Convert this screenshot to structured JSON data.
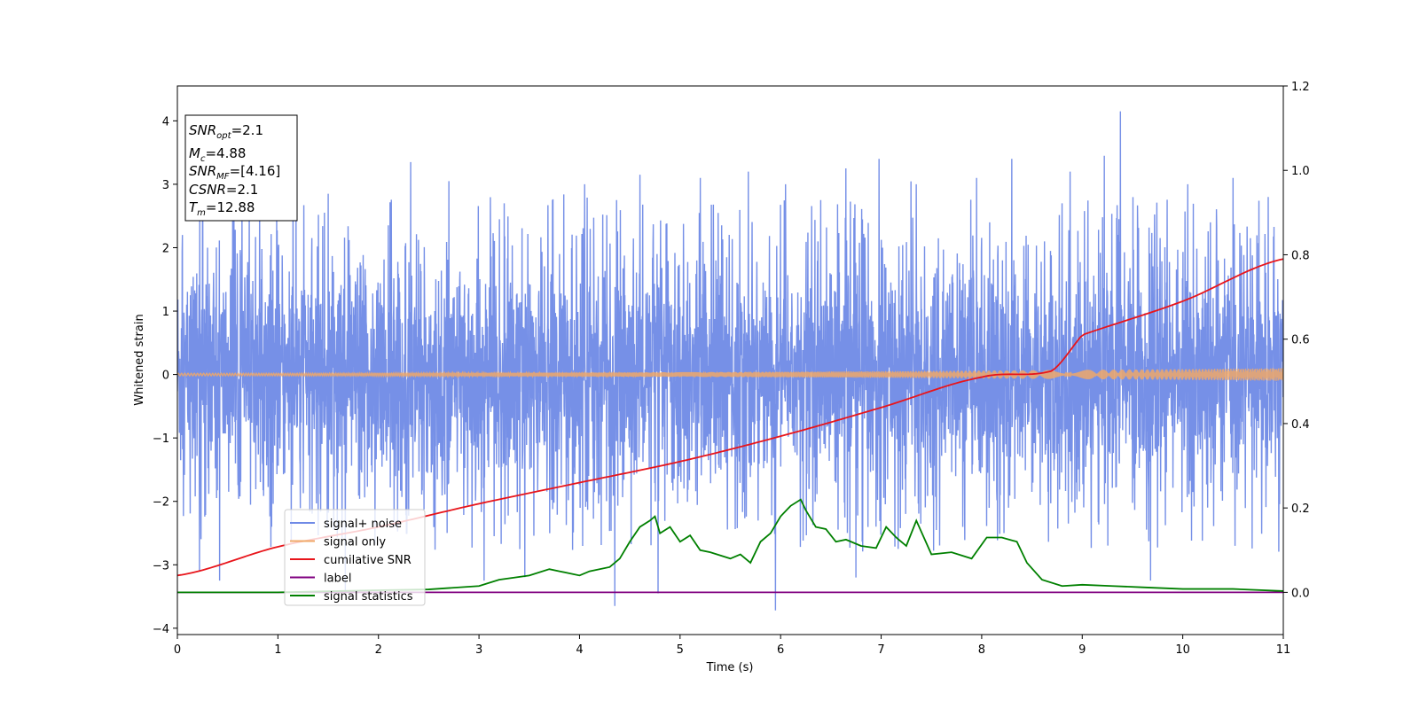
{
  "chart_data": {
    "type": "line",
    "xlabel": "Time (s)",
    "ylabel": "Whitened strain",
    "xlim": [
      0,
      11
    ],
    "ylim_left": [
      -4.1,
      4.55
    ],
    "ylim_right": [
      -0.1,
      1.2
    ],
    "x_ticks": [
      0,
      1,
      2,
      3,
      4,
      5,
      6,
      7,
      8,
      9,
      10,
      11
    ],
    "y_ticks_left": [
      -4,
      -3,
      -2,
      -1,
      0,
      1,
      2,
      3,
      4
    ],
    "y_ticks_right": [
      0.0,
      0.2,
      0.4,
      0.6,
      0.8,
      1.0,
      1.2
    ],
    "grid": false,
    "legend_placement": "lower-left",
    "series": [
      {
        "name": "signal+ noise",
        "axis": "left",
        "color": "#6f8ae6",
        "style": "dense-noise",
        "envelope_typical": [
          -1.8,
          1.8
        ],
        "spikes": [
          {
            "x": 0.05,
            "y": 2.2
          },
          {
            "x": 0.22,
            "y": -3.1
          },
          {
            "x": 0.42,
            "y": -3.25
          },
          {
            "x": 0.55,
            "y": 2.6
          },
          {
            "x": 1.15,
            "y": 3.0
          },
          {
            "x": 1.5,
            "y": 2.85
          },
          {
            "x": 2.32,
            "y": 3.35
          },
          {
            "x": 2.7,
            "y": 3.05
          },
          {
            "x": 3.05,
            "y": -3.25
          },
          {
            "x": 3.25,
            "y": 2.7
          },
          {
            "x": 4.05,
            "y": 3.0
          },
          {
            "x": 4.35,
            "y": -3.65
          },
          {
            "x": 4.6,
            "y": 3.15
          },
          {
            "x": 4.78,
            "y": -3.45
          },
          {
            "x": 5.2,
            "y": 3.1
          },
          {
            "x": 5.68,
            "y": 3.2
          },
          {
            "x": 5.95,
            "y": -3.72
          },
          {
            "x": 6.05,
            "y": 3.0
          },
          {
            "x": 6.4,
            "y": 2.75
          },
          {
            "x": 6.75,
            "y": -3.2
          },
          {
            "x": 6.98,
            "y": 3.4
          },
          {
            "x": 7.35,
            "y": 3.0
          },
          {
            "x": 7.95,
            "y": 3.1
          },
          {
            "x": 8.3,
            "y": 3.4
          },
          {
            "x": 8.88,
            "y": 3.2
          },
          {
            "x": 9.22,
            "y": 3.45
          },
          {
            "x": 9.38,
            "y": 4.15
          },
          {
            "x": 9.68,
            "y": -3.25
          },
          {
            "x": 10.05,
            "y": 3.0
          },
          {
            "x": 10.5,
            "y": 3.1
          },
          {
            "x": 10.52,
            "y": -2.7
          },
          {
            "x": 10.85,
            "y": 2.8
          }
        ]
      },
      {
        "name": "signal only",
        "axis": "left",
        "color": "#f0a868",
        "style": "chirp",
        "amplitude_start": 0.02,
        "amplitude_end": 0.1
      },
      {
        "name": "cumilative SNR",
        "axis": "right",
        "color": "#e8151b",
        "x": [
          0,
          1,
          2,
          3,
          4,
          5,
          6,
          7,
          8,
          8.7,
          9,
          10,
          11
        ],
        "y": [
          0.04,
          0.108,
          0.155,
          0.21,
          0.26,
          0.31,
          0.37,
          0.438,
          0.51,
          0.525,
          0.61,
          0.69,
          0.79
        ]
      },
      {
        "name": "label",
        "axis": "right",
        "color": "#800080",
        "x": [
          0,
          11
        ],
        "y": [
          0.0,
          0.0
        ]
      },
      {
        "name": "signal statistics",
        "axis": "right",
        "color": "#008000",
        "x": [
          0,
          1,
          2,
          2.5,
          3,
          3.2,
          3.5,
          3.7,
          3.8,
          4.0,
          4.1,
          4.3,
          4.4,
          4.5,
          4.6,
          4.7,
          4.75,
          4.8,
          4.9,
          5.0,
          5.1,
          5.2,
          5.3,
          5.5,
          5.6,
          5.7,
          5.8,
          5.9,
          6.0,
          6.1,
          6.2,
          6.25,
          6.35,
          6.45,
          6.55,
          6.65,
          6.8,
          6.95,
          7.05,
          7.15,
          7.25,
          7.35,
          7.5,
          7.7,
          7.9,
          8.05,
          8.2,
          8.35,
          8.45,
          8.6,
          8.8,
          9.0,
          9.3,
          9.6,
          10.0,
          10.5,
          11.0
        ],
        "y": [
          0.0,
          0.0,
          0.005,
          0.007,
          0.015,
          0.03,
          0.04,
          0.055,
          0.05,
          0.04,
          0.05,
          0.06,
          0.08,
          0.12,
          0.155,
          0.17,
          0.18,
          0.14,
          0.155,
          0.12,
          0.135,
          0.1,
          0.095,
          0.08,
          0.09,
          0.07,
          0.12,
          0.14,
          0.18,
          0.205,
          0.22,
          0.195,
          0.155,
          0.15,
          0.12,
          0.125,
          0.11,
          0.105,
          0.155,
          0.13,
          0.11,
          0.17,
          0.09,
          0.095,
          0.08,
          0.13,
          0.13,
          0.12,
          0.07,
          0.03,
          0.015,
          0.018,
          0.015,
          0.012,
          0.008,
          0.008,
          0.003
        ]
      }
    ],
    "annotation_box": {
      "snr_opt": "=2.1",
      "mc": "=4.88",
      "snr_mf": "=[4.16]",
      "csnr": "=2.1",
      "tm": "=12.88"
    }
  }
}
